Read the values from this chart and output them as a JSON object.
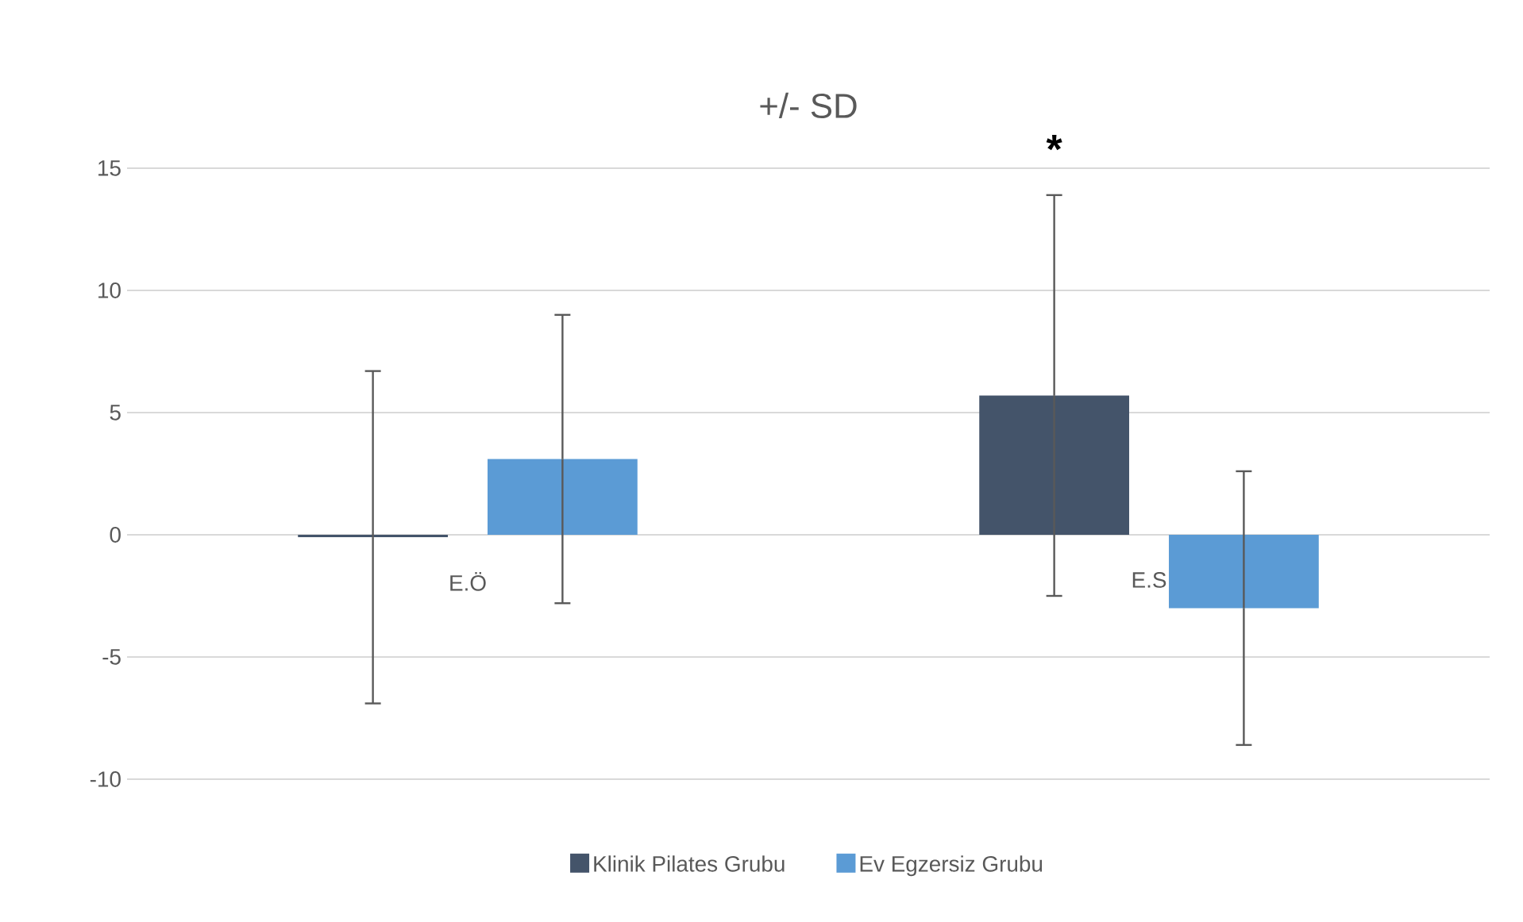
{
  "chart_data": {
    "type": "bar",
    "title": "+/- SD",
    "categories": [
      "E.Ö",
      "E.S"
    ],
    "series": [
      {
        "name": "Klinik Pilates Grubu",
        "color": "#44546a",
        "values": [
          -0.1,
          5.7
        ],
        "errors": [
          6.8,
          8.2
        ]
      },
      {
        "name": "Ev Egzersiz Grubu",
        "color": "#5b9bd5",
        "values": [
          3.1,
          -3.0
        ],
        "errors": [
          5.9,
          5.6
        ]
      }
    ],
    "annotations": [
      "*"
    ],
    "ylim": [
      -10,
      15
    ],
    "yticks": [
      -10,
      -5,
      0,
      5,
      10,
      15
    ],
    "grid": "y",
    "legend": "bottom"
  }
}
